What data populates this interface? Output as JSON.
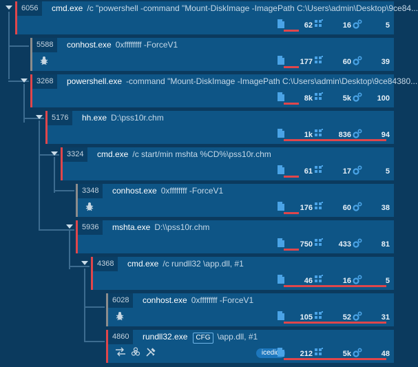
{
  "colors": {
    "background": "#0b3a5e",
    "node_bg": "#0e5586",
    "accent_red": "#e0464b",
    "muted_gray": "#8c8c8c",
    "icon_blue": "#4aa3e6",
    "badge_blue": "#1d77bd"
  },
  "icons": {
    "stat_files": "file-icon",
    "stat_registry": "registry-grid-icon",
    "stat_activity": "gears-icon",
    "bug": "bug-icon",
    "row_actions": [
      "network-arrows-icon",
      "biohazard-icon",
      "tools-icon"
    ]
  },
  "processes": [
    {
      "pid": "6056",
      "exe": "cmd.exe",
      "args": "/c \"powershell -command \"Mount-DiskImage -ImagePath C:\\Users\\admin\\Desktop\\9ce84...",
      "files": "62",
      "registry": "16",
      "activity": "5",
      "bar_fraction": 0.14,
      "flagged": true,
      "expanded": true
    },
    {
      "pid": "5588",
      "exe": "conhost.exe",
      "args": "0xffffffff -ForceV1",
      "files": "177",
      "registry": "60",
      "activity": "39",
      "bar_fraction": 0.14,
      "flagged": false,
      "bug": true
    },
    {
      "pid": "3268",
      "exe": "powershell.exe",
      "args": "-command \"Mount-DiskImage -ImagePath C:\\Users\\admin\\Desktop\\9ce84380...",
      "files": "8k",
      "registry": "5k",
      "activity": "100",
      "bar_fraction": 0.14,
      "flagged": true,
      "expanded": true
    },
    {
      "pid": "5176",
      "exe": "hh.exe",
      "args": "D:\\pss10r.chm",
      "files": "1k",
      "registry": "836",
      "activity": "94",
      "bar_fraction": 0.97,
      "flagged": true,
      "expanded": true
    },
    {
      "pid": "3324",
      "exe": "cmd.exe",
      "args": "/c start/min mshta %CD%\\pss10r.chm",
      "files": "61",
      "registry": "17",
      "activity": "5",
      "bar_fraction": 0.14,
      "flagged": true,
      "expanded": true
    },
    {
      "pid": "3348",
      "exe": "conhost.exe",
      "args": "0xffffffff -ForceV1",
      "files": "176",
      "registry": "60",
      "activity": "38",
      "bar_fraction": 0.14,
      "flagged": false,
      "bug": true
    },
    {
      "pid": "5936",
      "exe": "mshta.exe",
      "args": "D:\\\\pss10r.chm",
      "files": "750",
      "registry": "433",
      "activity": "81",
      "bar_fraction": 0.14,
      "flagged": true,
      "expanded": true
    },
    {
      "pid": "4368",
      "exe": "cmd.exe",
      "args": "/c rundll32 \\app.dll, #1",
      "files": "46",
      "registry": "16",
      "activity": "5",
      "bar_fraction": 0.97,
      "flagged": true,
      "expanded": true
    },
    {
      "pid": "6028",
      "exe": "conhost.exe",
      "args": "0xffffffff -ForceV1",
      "files": "105",
      "registry": "52",
      "activity": "31",
      "bar_fraction": 0.97,
      "flagged": false,
      "bug": true
    },
    {
      "pid": "4860",
      "exe": "rundll32.exe",
      "tag": "CFG",
      "args": "\\app.dll, #1",
      "files": "212",
      "registry": "5k",
      "activity": "48",
      "bar_fraction": 0.97,
      "flagged": true,
      "badge": "icedid",
      "action_icons": true
    }
  ]
}
